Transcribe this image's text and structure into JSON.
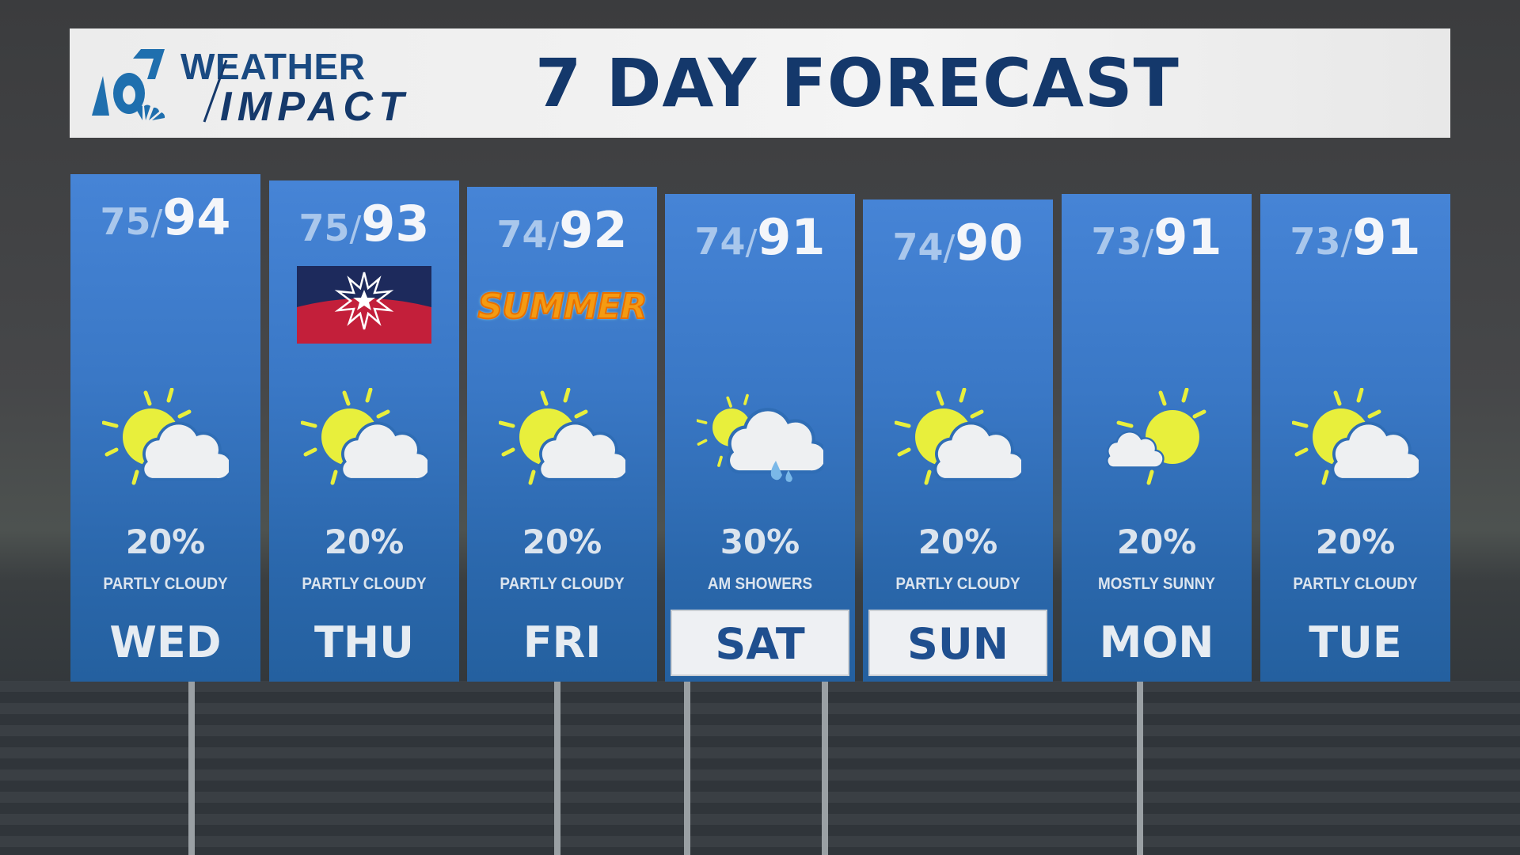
{
  "header": {
    "logo": {
      "channel": "6",
      "line1": "WEATHER",
      "line2": "IMPACT"
    },
    "title": "7 DAY FORECAST",
    "brand_color": "#14386b"
  },
  "colors": {
    "column_top": "#4684d6",
    "column_bottom": "#24609f",
    "sun": "#e8ef3c",
    "cloud": "#eef0f2",
    "rain": "#7ab8e8",
    "weekend_highlight_bg": "#eef0f3"
  },
  "days": [
    {
      "day": "WED",
      "low": "75",
      "high": "94",
      "precip": "20%",
      "condition": "PARTLY CLOUDY",
      "icon": "partly-cloudy-icon",
      "highlight": false
    },
    {
      "day": "THU",
      "low": "75",
      "high": "93",
      "precip": "20%",
      "condition": "PARTLY CLOUDY",
      "icon": "partly-cloudy-icon",
      "highlight": false,
      "badge": "juneteenth-flag-icon"
    },
    {
      "day": "FRI",
      "low": "74",
      "high": "92",
      "precip": "20%",
      "condition": "PARTLY CLOUDY",
      "icon": "partly-cloudy-icon",
      "highlight": false,
      "badge": "summer-graphic",
      "badge_text": "SUMMER"
    },
    {
      "day": "SAT",
      "low": "74",
      "high": "91",
      "precip": "30%",
      "condition": "AM SHOWERS",
      "icon": "am-showers-icon",
      "highlight": true
    },
    {
      "day": "SUN",
      "low": "74",
      "high": "90",
      "precip": "20%",
      "condition": "PARTLY CLOUDY",
      "icon": "partly-cloudy-icon",
      "highlight": true
    },
    {
      "day": "MON",
      "low": "73",
      "high": "91",
      "precip": "20%",
      "condition": "MOSTLY SUNNY",
      "icon": "mostly-sunny-icon",
      "highlight": false
    },
    {
      "day": "TUE",
      "low": "73",
      "high": "91",
      "precip": "20%",
      "condition": "PARTLY CLOUDY",
      "icon": "partly-cloudy-icon",
      "highlight": false
    }
  ]
}
